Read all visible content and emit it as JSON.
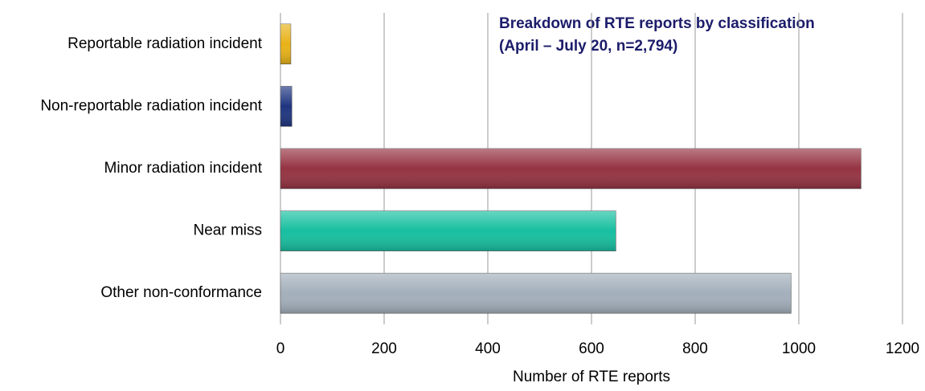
{
  "chart_data": {
    "type": "bar",
    "orientation": "horizontal",
    "title": [
      "Breakdown of RTE reports by classification",
      "(April – July 20, n=2,794)"
    ],
    "x_label": "Number of RTE reports",
    "categories": [
      "Reportable radiation incident",
      "Non-reportable radiation incident",
      "Minor radiation incident",
      "Near miss",
      "Other non-conformance"
    ],
    "values": [
      20,
      22,
      1120,
      647,
      985
    ],
    "colors": [
      "#e8b217",
      "#1f3580",
      "#953342",
      "#17bfa0",
      "#a3afbb"
    ],
    "xlim": [
      0,
      1200
    ],
    "xticks": [
      0,
      200,
      400,
      600,
      800,
      1000,
      1200
    ],
    "grid": true
  }
}
